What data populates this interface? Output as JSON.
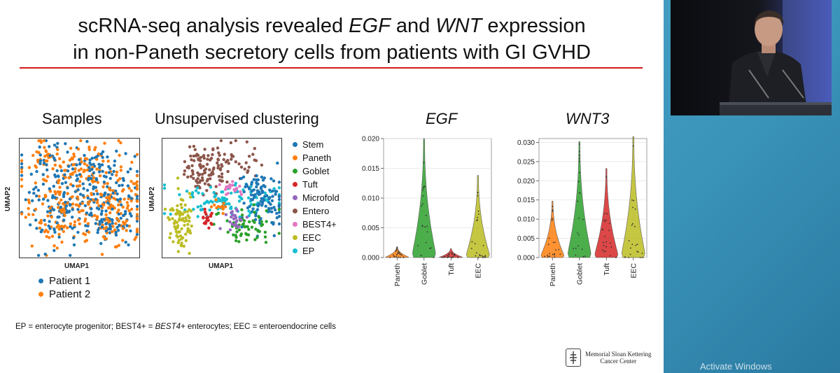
{
  "slide": {
    "title_line1_pre": "scRNA-seq analysis revealed ",
    "title_line1_egf": "EGF",
    "title_line1_mid": " and ",
    "title_line1_wnt": "WNT",
    "title_line1_post": " expression",
    "title_line2": "in non-Paneth secretory cells from patients with GI GVHD",
    "panels": {
      "samples_title": "Samples",
      "clustering_title": "Unsupervised clustering",
      "egf_title": "EGF",
      "wnt3_title": "WNT3"
    },
    "umap_axis": {
      "x": "UMAP1",
      "y": "UMAP2"
    },
    "patient_legend": [
      {
        "label": "Patient 1",
        "color": "#1f77b4"
      },
      {
        "label": "Patient 2",
        "color": "#ff7f0e"
      }
    ],
    "cluster_legend": [
      {
        "label": "Stem",
        "color": "#1f77b4"
      },
      {
        "label": "Paneth",
        "color": "#ff7f0e"
      },
      {
        "label": "Goblet",
        "color": "#2ca02c"
      },
      {
        "label": "Tuft",
        "color": "#d62728"
      },
      {
        "label": "Microfold",
        "color": "#9467bd"
      },
      {
        "label": "Entero",
        "color": "#8c564b"
      },
      {
        "label": "BEST4+",
        "color": "#e377c2"
      },
      {
        "label": "EEC",
        "color": "#bcbd22"
      },
      {
        "label": "EP",
        "color": "#17becf"
      }
    ],
    "footnote_pre": "EP = enterocyte progenitor; BEST4+ = ",
    "footnote_italic": "BEST4+",
    "footnote_post": " enterocytes; EEC = enteroendocrine cells",
    "logo_line1": "Memorial Sloan Kettering",
    "logo_line2": "Cancer Center"
  },
  "chart_data": [
    {
      "type": "violin",
      "title": "EGF",
      "categories": [
        "Paneth",
        "Goblet",
        "Tuft",
        "EEC"
      ],
      "colors": [
        "#ff7f0e",
        "#2ca02c",
        "#d62728",
        "#bcbd22"
      ],
      "ylim": [
        0,
        0.02
      ],
      "yticks": [
        "0.000",
        "0.005",
        "0.010",
        "0.015",
        "0.020"
      ],
      "ytick_values": [
        0,
        0.005,
        0.01,
        0.015,
        0.02
      ],
      "max_values": [
        0.0018,
        0.02,
        0.0015,
        0.0138
      ]
    },
    {
      "type": "violin",
      "title": "WNT3",
      "categories": [
        "Paneth",
        "Goblet",
        "Tuft",
        "EEC"
      ],
      "colors": [
        "#ff7f0e",
        "#2ca02c",
        "#d62728",
        "#bcbd22"
      ],
      "ylim": [
        0,
        0.031
      ],
      "yticks": [
        "0.000",
        "0.005",
        "0.010",
        "0.015",
        "0.020",
        "0.025",
        "0.030"
      ],
      "ytick_values": [
        0,
        0.005,
        0.01,
        0.015,
        0.02,
        0.025,
        0.03
      ],
      "max_values": [
        0.0147,
        0.0302,
        0.0232,
        0.0315
      ]
    }
  ],
  "watermark": "Activate Windows"
}
